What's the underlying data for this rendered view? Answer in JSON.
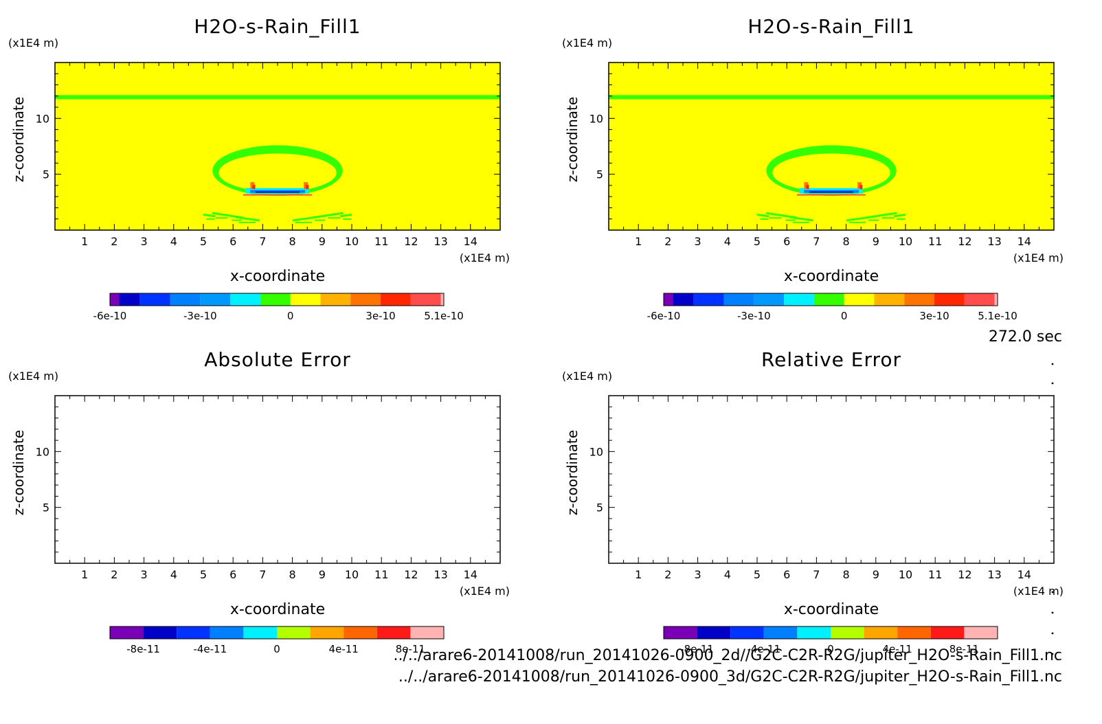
{
  "figure": {
    "time_label": "272.0 sec",
    "files": [
      "../../arare6-20141008/run_20141026-0900_2d//G2C-C2R-R2G/jupiter_H2O-s-Rain_Fill1.nc",
      "../../arare6-20141008/run_20141026-0900_3d/G2C-C2R-R2G/jupiter_H2O-s-Rain_Fill1.nc"
    ]
  },
  "colors": {
    "field_background": "#ffff00",
    "field_green": "#33ff00",
    "scale_top": [
      "#7a00b8",
      "#0000c8",
      "#0033ff",
      "#0080ff",
      "#0099ff",
      "#00f0ff",
      "#33ff00",
      "#ffff00",
      "#ffb300",
      "#ff7300",
      "#ff2600",
      "#ff4d4d",
      "#ffb3b3"
    ],
    "scale_bottom": [
      "#7a00b8",
      "#0000c8",
      "#0033ff",
      "#0080ff",
      "#00f0ff",
      "#b3ff00",
      "#ffa500",
      "#ff6600",
      "#ff1a1a",
      "#ffb3b3"
    ]
  },
  "chart_data": [
    {
      "type": "heatmap",
      "title": "H2O-s-Rain_Fill1",
      "xlabel": "x-coordinate",
      "ylabel": "z-coordinate",
      "x_unit": "(x1E4 m)",
      "y_unit": "(x1E4 m)",
      "xlim": [
        0,
        15
      ],
      "ylim": [
        0,
        15
      ],
      "xticks": [
        1,
        2,
        3,
        4,
        5,
        6,
        7,
        8,
        9,
        10,
        11,
        12,
        13,
        14
      ],
      "yticks": [
        5,
        10
      ],
      "background_value": 0,
      "features": [
        {
          "kind": "horizontal_band",
          "z": 11.9,
          "value": "slightly negative (green)"
        },
        {
          "kind": "ring",
          "center_x": 7.5,
          "center_z": 5.2,
          "value": "slightly negative (green)"
        },
        {
          "kind": "negative_streak",
          "center_x": 7.5,
          "z": 3.4,
          "value": "-3e-10 to -6e-10"
        },
        {
          "kind": "positive_edges",
          "x": [
            6.7,
            8.5
          ],
          "z": 3.8,
          "value": "3e-10 to 5.1e-10"
        }
      ],
      "colorbar": {
        "ticks": [
          "-6e-10",
          "-3e-10",
          "0",
          "3e-10",
          "5.1e-10"
        ],
        "min": -6e-10,
        "max": 5.1e-10
      }
    },
    {
      "type": "heatmap",
      "title": "H2O-s-Rain_Fill1",
      "xlabel": "x-coordinate",
      "ylabel": "z-coordinate",
      "x_unit": "(x1E4 m)",
      "y_unit": "(x1E4 m)",
      "xlim": [
        0,
        15
      ],
      "ylim": [
        0,
        15
      ],
      "xticks": [
        1,
        2,
        3,
        4,
        5,
        6,
        7,
        8,
        9,
        10,
        11,
        12,
        13,
        14
      ],
      "yticks": [
        5,
        10
      ],
      "background_value": 0,
      "features": [
        {
          "kind": "horizontal_band",
          "z": 11.9,
          "value": "slightly negative (green)"
        },
        {
          "kind": "ring",
          "center_x": 7.5,
          "center_z": 5.2,
          "value": "slightly negative (green)"
        },
        {
          "kind": "negative_streak",
          "center_x": 7.5,
          "z": 3.4,
          "value": "-3e-10 to -6e-10"
        },
        {
          "kind": "positive_edges",
          "x": [
            6.7,
            8.5
          ],
          "z": 3.8,
          "value": "3e-10 to 5.1e-10"
        }
      ],
      "colorbar": {
        "ticks": [
          "-6e-10",
          "-3e-10",
          "0",
          "3e-10",
          "5.1e-10"
        ],
        "min": -6e-10,
        "max": 5.1e-10
      }
    },
    {
      "type": "heatmap",
      "title": "Absolute Error",
      "xlabel": "x-coordinate",
      "ylabel": "z-coordinate",
      "x_unit": "(x1E4 m)",
      "y_unit": "(x1E4 m)",
      "xlim": [
        0,
        15
      ],
      "ylim": [
        0,
        15
      ],
      "xticks": [
        1,
        2,
        3,
        4,
        5,
        6,
        7,
        8,
        9,
        10,
        11,
        12,
        13,
        14
      ],
      "yticks": [
        5,
        10
      ],
      "features": [],
      "colorbar": {
        "ticks": [
          "-8e-11",
          "-4e-11",
          "0",
          "4e-11",
          "8e-11"
        ],
        "min": -1e-10,
        "max": 1e-10
      }
    },
    {
      "type": "heatmap",
      "title": "Relative Error",
      "xlabel": "x-coordinate",
      "ylabel": "z-coordinate",
      "x_unit": "(x1E4 m)",
      "y_unit": "(x1E4 m)",
      "xlim": [
        0,
        15
      ],
      "ylim": [
        0,
        15
      ],
      "xticks": [
        1,
        2,
        3,
        4,
        5,
        6,
        7,
        8,
        9,
        10,
        11,
        12,
        13,
        14
      ],
      "yticks": [
        5,
        10
      ],
      "features": [],
      "colorbar": {
        "ticks": [
          "-8e-11",
          "-4e-11",
          "0",
          "4e-11",
          "8e-11"
        ],
        "min": -1e-10,
        "max": 1e-10
      }
    }
  ]
}
